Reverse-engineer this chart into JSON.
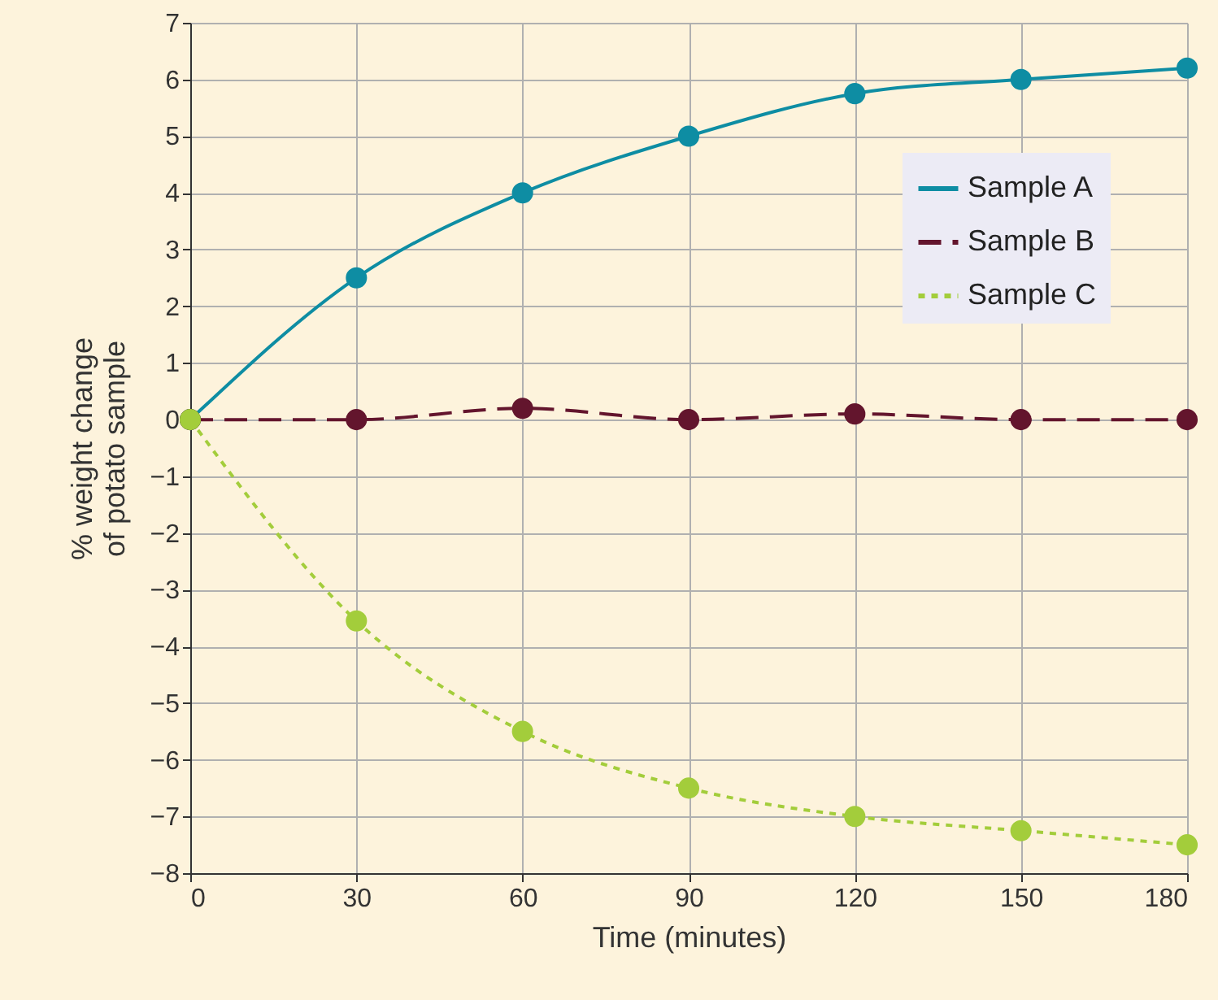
{
  "chart_data": {
    "type": "line",
    "xlabel": "Time (minutes)",
    "ylabel": "% weight change of potato sample",
    "x": [
      0,
      30,
      60,
      90,
      120,
      150,
      180
    ],
    "series": [
      {
        "name": "Sample A",
        "color": "#0e8da3",
        "line_style": "solid",
        "values": [
          0,
          2.5,
          4,
          5,
          5.75,
          6,
          6.2
        ]
      },
      {
        "name": "Sample B",
        "color": "#63152d",
        "line_style": "dashed",
        "values": [
          0,
          0,
          0.2,
          0,
          0.1,
          0,
          0
        ]
      },
      {
        "name": "Sample C",
        "color": "#a3cd3b",
        "line_style": "dotted",
        "values": [
          0,
          -3.55,
          -5.5,
          -6.5,
          -7,
          -7.25,
          -7.5
        ]
      }
    ],
    "xlim": [
      0,
      180
    ],
    "xticks": [
      0,
      30,
      60,
      90,
      120,
      150,
      180
    ],
    "ylim": [
      -8,
      7
    ],
    "yticks": [
      -8,
      -7,
      -6,
      -5,
      -4,
      -3,
      -2,
      -1,
      0,
      1,
      2,
      3,
      4,
      5,
      6,
      7
    ],
    "grid": true,
    "legend": "right",
    "marker": "circle"
  }
}
